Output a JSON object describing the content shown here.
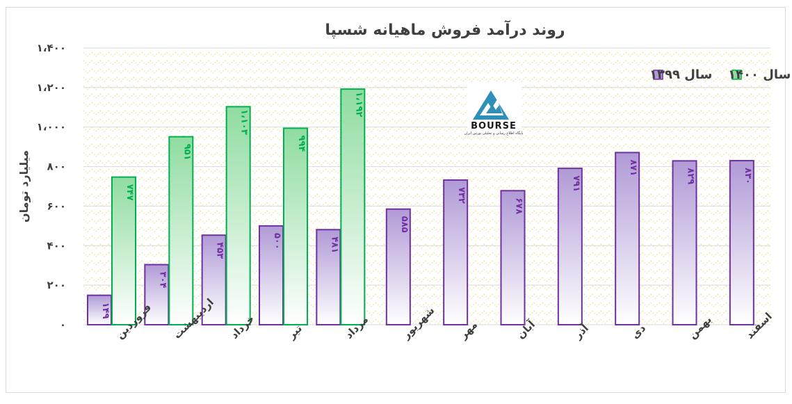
{
  "chart_data": {
    "type": "bar",
    "title": "روند درآمد فروش ماهیانه شسپا",
    "ylabel": "میلیارد تومان",
    "xlabel": "",
    "ylim": [
      0,
      1400
    ],
    "yticks": [
      0,
      200,
      400,
      600,
      800,
      1000,
      1200,
      1400
    ],
    "ytick_labels": [
      "۰",
      "۲۰۰",
      "۴۰۰",
      "۶۰۰",
      "۸۰۰",
      "۱،۰۰۰",
      "۱،۲۰۰",
      "۱،۴۰۰"
    ],
    "categories": [
      "فروردین",
      "اردیبهشت",
      "خرداد",
      "تیر",
      "مرداد",
      "شهریور",
      "مهر",
      "آبان",
      "آذر",
      "دی",
      "بهمن",
      "اسفند"
    ],
    "series": [
      {
        "name": "سال ۱۳۹۹",
        "color": "#7030a0",
        "fill_top": "#b09ad6",
        "fill_bottom": "#ffffff",
        "values": [
          149,
          304,
          453,
          500,
          481,
          585,
          732,
          678,
          791,
          871,
          829,
          830
        ],
        "labels": [
          "۱۴۹",
          "۳۰۴",
          "۴۵۳",
          "۵۰۰",
          "۴۸۱",
          "۵۸۵",
          "۷۳۲",
          "۶۷۸",
          "۷۹۱",
          "۸۷۱",
          "۸۲۹",
          "۸۳۰"
        ]
      },
      {
        "name": "سال ۱۴۰۰",
        "color": "#00b050",
        "fill_top": "#8fdca0",
        "fill_bottom": "#ffffff",
        "values": [
          747,
          951,
          1103,
          994,
          1192,
          null,
          null,
          null,
          null,
          null,
          null,
          null
        ],
        "labels": [
          "۷۴۷",
          "۹۵۱",
          "۱،۱۰۳",
          "۹۹۴",
          "۱،۱۹۲",
          "",
          "",
          "",
          "",
          "",
          "",
          ""
        ]
      }
    ],
    "legend_position": "top-right",
    "grid": true,
    "background_pattern_color": "#fff3b0"
  },
  "logo": {
    "text": "BOURSE",
    "subtext": "پایگاه اطلاع رسانی و تحلیلی بورس ایران"
  }
}
